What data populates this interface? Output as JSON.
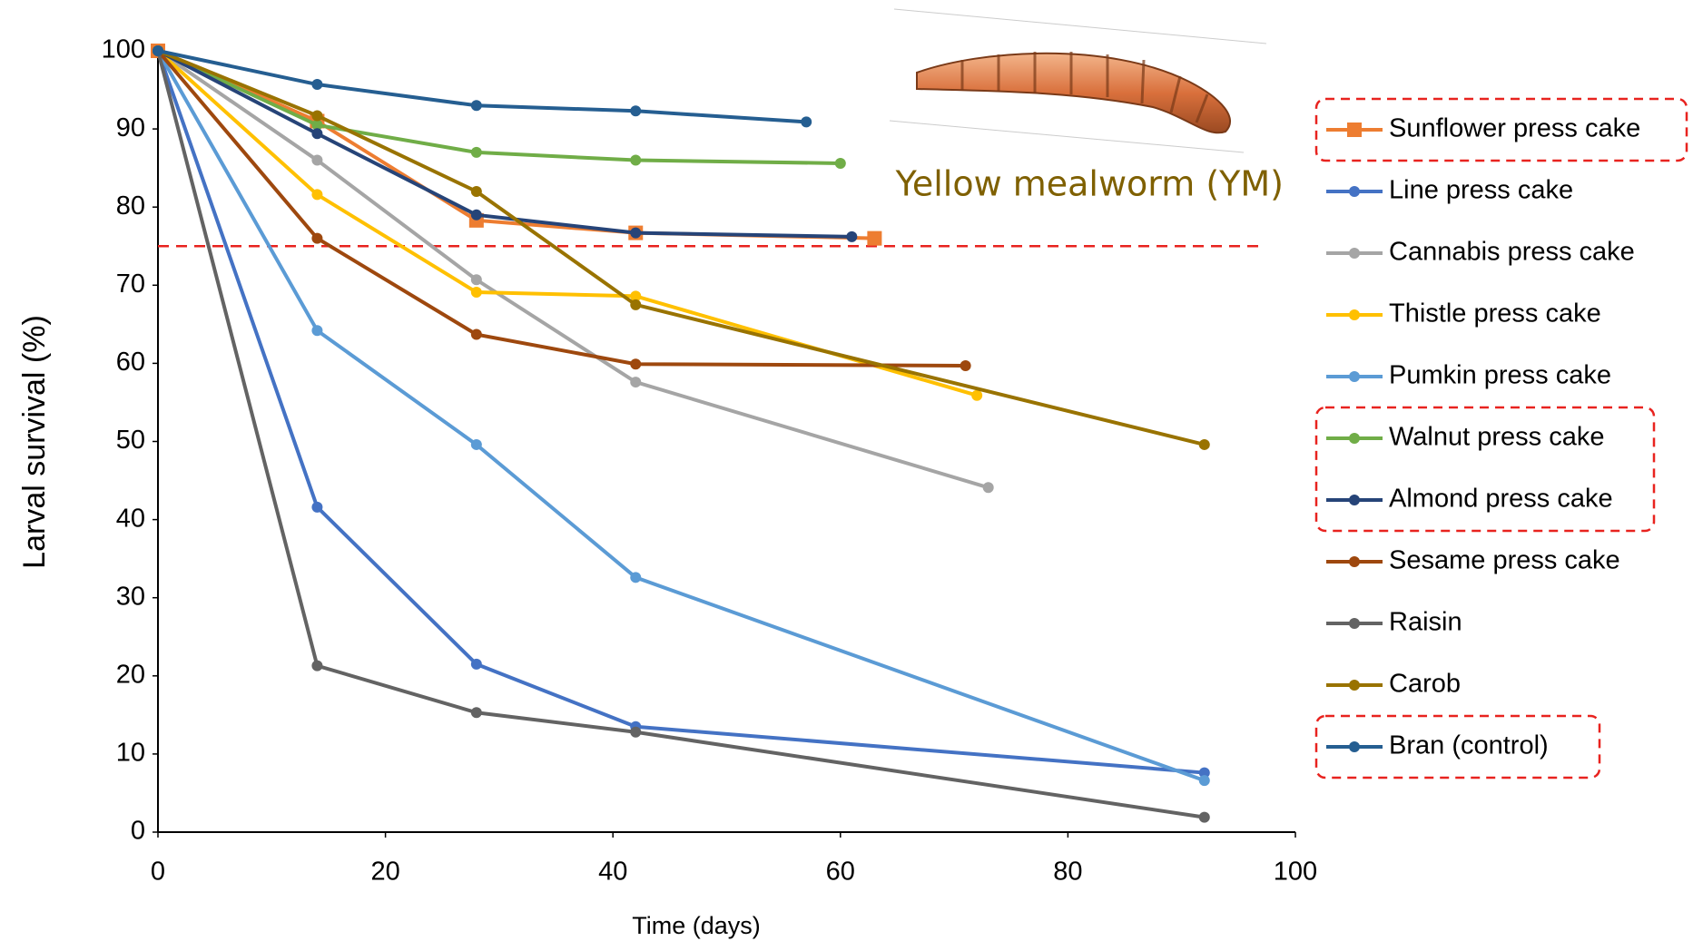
{
  "chart_data": {
    "type": "line",
    "x_label": "Time (days)",
    "y_label": "Larval survival (%)",
    "annotation": "Yellow mealworm (YM)",
    "xlim": [
      0,
      100
    ],
    "xticks": [
      0,
      20,
      40,
      60,
      80,
      100
    ],
    "ylim": [
      0,
      100
    ],
    "yticks": [
      0,
      10,
      20,
      30,
      40,
      50,
      60,
      70,
      80,
      90,
      100
    ],
    "grid": false,
    "reference_line": 75,
    "reference_color": "#e8231f",
    "legend": "right",
    "series": [
      {
        "name": "Sunflower press cake",
        "color": "#ed7d31",
        "marker": "square",
        "x": [
          0,
          14,
          28,
          42,
          63
        ],
        "values": [
          100,
          91.0,
          78.3,
          76.7,
          76.0
        ]
      },
      {
        "name": "Line press cake",
        "color": "#4472c4",
        "marker": "circle",
        "x": [
          0,
          14,
          28,
          42,
          92
        ],
        "values": [
          100,
          41.6,
          21.5,
          13.5,
          7.6
        ]
      },
      {
        "name": "Cannabis press cake",
        "color": "#a5a5a5",
        "marker": "circle",
        "x": [
          0,
          14,
          28,
          42,
          73
        ],
        "values": [
          100,
          86.0,
          70.7,
          57.6,
          44.1
        ]
      },
      {
        "name": "Thistle press cake",
        "color": "#ffc000",
        "marker": "circle",
        "x": [
          0,
          14,
          28,
          42,
          72
        ],
        "values": [
          100,
          81.6,
          69.1,
          68.6,
          55.9
        ]
      },
      {
        "name": "Pumkin press cake",
        "color": "#5b9bd5",
        "marker": "circle",
        "x": [
          0,
          14,
          28,
          42,
          92
        ],
        "values": [
          100,
          64.2,
          49.6,
          32.6,
          6.6
        ]
      },
      {
        "name": "Walnut press cake",
        "color": "#70ad47",
        "marker": "circle",
        "x": [
          0,
          14,
          28,
          42,
          60
        ],
        "values": [
          100,
          90.5,
          87.0,
          86.0,
          85.6
        ]
      },
      {
        "name": "Almond press cake",
        "color": "#264478",
        "marker": "circle",
        "x": [
          0,
          14,
          28,
          42,
          61
        ],
        "values": [
          100,
          89.4,
          79.0,
          76.7,
          76.2
        ]
      },
      {
        "name": "Sesame press cake",
        "color": "#9e480e",
        "marker": "circle",
        "x": [
          0,
          14,
          28,
          42,
          71
        ],
        "values": [
          100,
          76.0,
          63.7,
          59.9,
          59.7
        ]
      },
      {
        "name": "Raisin",
        "color": "#636363",
        "marker": "circle",
        "x": [
          0,
          14,
          28,
          42,
          92
        ],
        "values": [
          100,
          21.3,
          15.3,
          12.8,
          1.9
        ]
      },
      {
        "name": "Carob",
        "color": "#997300",
        "marker": "circle",
        "x": [
          0,
          14,
          28,
          42,
          92
        ],
        "values": [
          100,
          91.7,
          82.0,
          67.5,
          49.6
        ]
      },
      {
        "name": "Bran (control)",
        "color": "#255e91",
        "marker": "circle",
        "x": [
          0,
          14,
          28,
          42,
          57
        ],
        "values": [
          100,
          95.7,
          93.0,
          92.3,
          90.9
        ]
      }
    ]
  }
}
